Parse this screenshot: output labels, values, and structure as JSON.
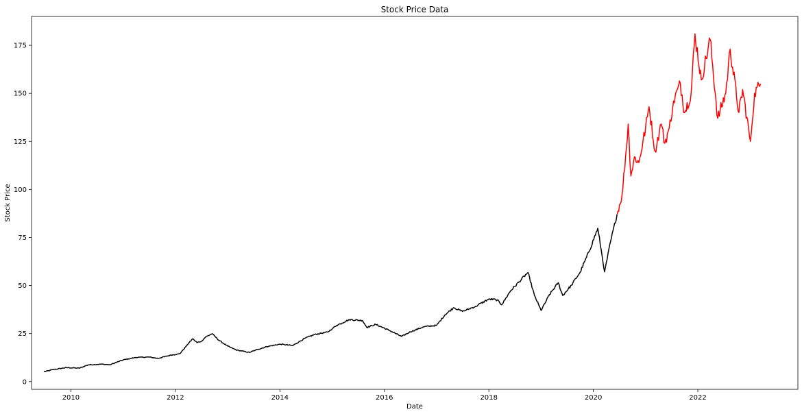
{
  "chart_data": {
    "type": "line",
    "title": "Stock Price Data",
    "xlabel": "Date",
    "ylabel": "Stock Price",
    "x_range": [
      "2009-04-01",
      "2023-12-01"
    ],
    "ylim": [
      -4,
      190
    ],
    "x_ticks": [
      "2010",
      "2012",
      "2014",
      "2016",
      "2018",
      "2020",
      "2022"
    ],
    "y_ticks": [
      "0",
      "25",
      "50",
      "75",
      "100",
      "125",
      "150",
      "175"
    ],
    "grid": false,
    "legend": "none",
    "series": [
      {
        "color": "#000000",
        "points": [
          [
            "2009-06-26",
            5.1
          ],
          [
            "2009-09-01",
            6.3
          ],
          [
            "2009-12-01",
            7.3
          ],
          [
            "2010-03-01",
            7.0
          ],
          [
            "2010-05-01",
            8.7
          ],
          [
            "2010-08-01",
            9.1
          ],
          [
            "2010-10-01",
            8.8
          ],
          [
            "2011-01-01",
            11.3
          ],
          [
            "2011-04-01",
            12.6
          ],
          [
            "2011-07-01",
            12.8
          ],
          [
            "2011-09-01",
            12.1
          ],
          [
            "2011-12-01",
            13.8
          ],
          [
            "2012-02-01",
            14.5
          ],
          [
            "2012-04-01",
            19.8
          ],
          [
            "2012-05-01",
            22.3
          ],
          [
            "2012-06-01",
            20.3
          ],
          [
            "2012-07-01",
            21.0
          ],
          [
            "2012-08-01",
            23.3
          ],
          [
            "2012-09-15",
            24.9
          ],
          [
            "2012-11-01",
            21.5
          ],
          [
            "2013-01-01",
            18.5
          ],
          [
            "2013-03-01",
            16.5
          ],
          [
            "2013-06-01",
            15.2
          ],
          [
            "2013-08-01",
            16.8
          ],
          [
            "2013-10-01",
            18.2
          ],
          [
            "2014-01-01",
            19.5
          ],
          [
            "2014-04-01",
            18.8
          ],
          [
            "2014-07-01",
            22.8
          ],
          [
            "2014-09-01",
            24.5
          ],
          [
            "2014-12-01",
            25.8
          ],
          [
            "2015-02-01",
            29.2
          ],
          [
            "2015-05-01",
            32.3
          ],
          [
            "2015-08-01",
            31.8
          ],
          [
            "2015-09-01",
            28.2
          ],
          [
            "2015-11-01",
            29.8
          ],
          [
            "2016-02-01",
            26.8
          ],
          [
            "2016-05-01",
            23.5
          ],
          [
            "2016-07-01",
            25.9
          ],
          [
            "2016-10-01",
            28.5
          ],
          [
            "2017-01-01",
            29.3
          ],
          [
            "2017-03-01",
            34.8
          ],
          [
            "2017-05-01",
            38.5
          ],
          [
            "2017-07-01",
            36.5
          ],
          [
            "2017-10-01",
            39.2
          ],
          [
            "2018-01-01",
            43.0
          ],
          [
            "2018-03-01",
            42.5
          ],
          [
            "2018-04-01",
            40.0
          ],
          [
            "2018-06-01",
            47.2
          ],
          [
            "2018-08-01",
            52.0
          ],
          [
            "2018-10-01",
            56.8
          ],
          [
            "2018-11-15",
            45.0
          ],
          [
            "2019-01-01",
            37.0
          ],
          [
            "2019-03-01",
            45.3
          ],
          [
            "2019-05-01",
            51.5
          ],
          [
            "2019-06-01",
            44.8
          ],
          [
            "2019-08-01",
            50.2
          ],
          [
            "2019-10-01",
            57.0
          ],
          [
            "2019-12-01",
            67.5
          ],
          [
            "2020-02-01",
            79.8
          ],
          [
            "2020-03-20",
            57.1
          ],
          [
            "2020-05-01",
            73.0
          ],
          [
            "2020-06-15",
            87.0
          ]
        ]
      },
      {
        "color": "#ff0000",
        "points": [
          [
            "2020-06-15",
            87.0
          ],
          [
            "2020-07-20",
            97.0
          ],
          [
            "2020-08-20",
            122.0
          ],
          [
            "2020-09-01",
            134.0
          ],
          [
            "2020-09-20",
            107.0
          ],
          [
            "2020-10-15",
            117.0
          ],
          [
            "2020-11-15",
            114.0
          ],
          [
            "2021-01-01",
            132.0
          ],
          [
            "2021-01-25",
            143.0
          ],
          [
            "2021-03-08",
            120.0
          ],
          [
            "2021-04-20",
            134.0
          ],
          [
            "2021-05-15",
            124.0
          ],
          [
            "2021-06-15",
            132.0
          ],
          [
            "2021-07-15",
            146.0
          ],
          [
            "2021-09-01",
            155.0
          ],
          [
            "2021-10-01",
            140.0
          ],
          [
            "2021-11-15",
            150.0
          ],
          [
            "2021-12-12",
            181.0
          ],
          [
            "2022-01-25",
            157.0
          ],
          [
            "2022-03-28",
            178.0
          ],
          [
            "2022-05-20",
            137.0
          ],
          [
            "2022-07-15",
            150.0
          ],
          [
            "2022-08-15",
            173.0
          ],
          [
            "2022-10-15",
            140.0
          ],
          [
            "2022-11-10",
            152.0
          ],
          [
            "2023-01-03",
            125.0
          ],
          [
            "2023-02-01",
            150.0
          ],
          [
            "2023-03-15",
            155.0
          ]
        ]
      }
    ]
  }
}
